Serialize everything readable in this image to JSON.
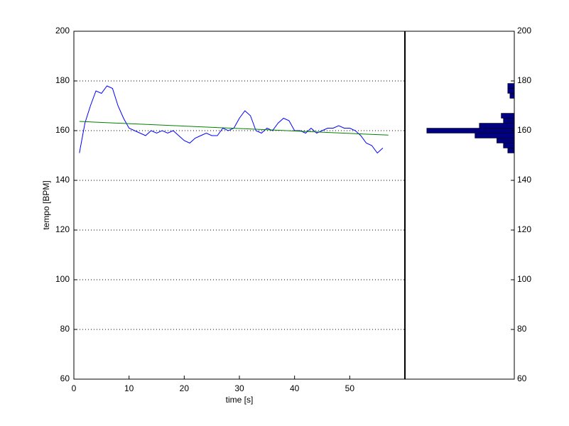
{
  "chart_data": [
    {
      "type": "line",
      "xlabel": "time [s]",
      "ylabel": "tempo [BPM]",
      "xlim": [
        0,
        60
      ],
      "xticks": [
        0,
        10,
        20,
        30,
        40,
        50
      ],
      "ylim": [
        60,
        200
      ],
      "yticks": [
        60,
        80,
        100,
        120,
        140,
        160,
        180,
        200
      ],
      "grid": true,
      "series": [
        {
          "color": "#0000ff",
          "x": [
            1,
            2,
            3,
            4,
            5,
            6,
            7,
            8,
            9,
            10,
            11,
            12,
            13,
            14,
            15,
            16,
            17,
            18,
            19,
            20,
            21,
            22,
            23,
            24,
            25,
            26,
            27,
            28,
            29,
            30,
            31,
            32,
            33,
            34,
            35,
            36,
            37,
            38,
            39,
            40,
            41,
            42,
            43,
            44,
            45,
            46,
            47,
            48,
            49,
            50,
            51,
            52,
            53,
            54,
            55,
            56
          ],
          "values": [
            151,
            163,
            170,
            176,
            175,
            178,
            177,
            170,
            165,
            161,
            160,
            159,
            158,
            160,
            159,
            160,
            159,
            160,
            158,
            156,
            155,
            157,
            158,
            159,
            158,
            158,
            161,
            160,
            161,
            165,
            168,
            166,
            160,
            159,
            161,
            160,
            163,
            165,
            164,
            160,
            160,
            159,
            161,
            159,
            160,
            161,
            161,
            162,
            161,
            161,
            160,
            158,
            155,
            154,
            151,
            153
          ]
        },
        {
          "color": "#008000",
          "x": [
            1,
            57
          ],
          "values": [
            163.7,
            158.2
          ]
        }
      ]
    },
    {
      "type": "barh-histogram",
      "color": "#000080",
      "xdir": "reverse",
      "xlim": [
        0,
        50
      ],
      "ylim": [
        60,
        200
      ],
      "yticks": [
        60,
        80,
        100,
        120,
        140,
        160,
        180,
        200
      ],
      "bins": [
        151,
        153,
        155,
        157,
        159,
        161,
        163,
        165,
        167,
        169,
        171,
        173,
        175,
        177,
        179
      ],
      "counts": [
        3,
        5,
        8,
        18,
        40,
        16,
        5,
        6,
        0,
        0,
        0,
        2,
        3,
        3
      ]
    }
  ]
}
